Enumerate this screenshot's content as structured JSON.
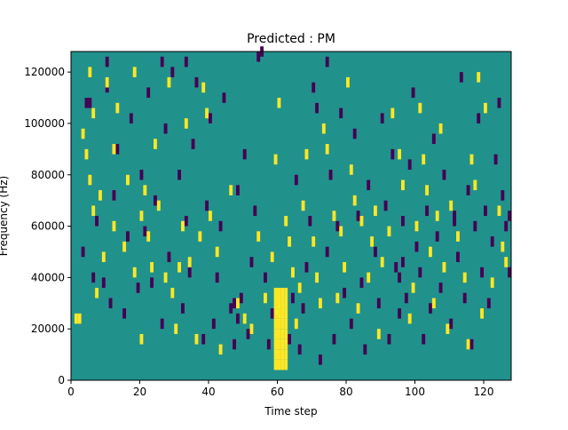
{
  "chart_data": {
    "type": "heatmap",
    "title": "Predicted : PM",
    "xlabel": "Time step",
    "ylabel": "Frequency (Hz)",
    "xlim": [
      0,
      128
    ],
    "ylim": [
      0,
      128000
    ],
    "x_ticks": [
      0,
      20,
      40,
      60,
      80,
      100,
      120
    ],
    "x_tick_labels": [
      "0",
      "20",
      "40",
      "60",
      "80",
      "100",
      "120"
    ],
    "y_ticks": [
      0,
      20000,
      40000,
      60000,
      80000,
      100000,
      120000
    ],
    "y_tick_labels": [
      "0",
      "20000",
      "40000",
      "60000",
      "80000",
      "100000",
      "120000"
    ],
    "grid": false,
    "colormap": "viridis",
    "background_value": 0,
    "colors": {
      "low": "#440154",
      "mid": "#21918c",
      "high": "#fde725"
    },
    "cell_height_hz": 4000,
    "bright_band": {
      "x_from": 59,
      "x_to": 62,
      "y_from": 4000,
      "y_to": 32000,
      "value": 1
    },
    "high_cells": [
      [
        1,
        22000
      ],
      [
        2,
        22000
      ],
      [
        3,
        94000
      ],
      [
        4,
        86000
      ],
      [
        5,
        76000
      ],
      [
        6,
        102000
      ],
      [
        5,
        118000
      ],
      [
        6,
        64000
      ],
      [
        7,
        32000
      ],
      [
        8,
        70000
      ],
      [
        9,
        46000
      ],
      [
        10,
        114000
      ],
      [
        12,
        58000
      ],
      [
        12,
        88000
      ],
      [
        13,
        104000
      ],
      [
        15,
        50000
      ],
      [
        16,
        76000
      ],
      [
        18,
        40000
      ],
      [
        18,
        118000
      ],
      [
        20,
        14000
      ],
      [
        20,
        62000
      ],
      [
        21,
        72000
      ],
      [
        22,
        54000
      ],
      [
        23,
        42000
      ],
      [
        24,
        90000
      ],
      [
        25,
        66000
      ],
      [
        27,
        38000
      ],
      [
        28,
        114000
      ],
      [
        29,
        32000
      ],
      [
        30,
        18000
      ],
      [
        31,
        42000
      ],
      [
        32,
        58000
      ],
      [
        33,
        98000
      ],
      [
        34,
        44000
      ],
      [
        36,
        14000
      ],
      [
        37,
        54000
      ],
      [
        38,
        112000
      ],
      [
        39,
        102000
      ],
      [
        40,
        62000
      ],
      [
        42,
        48000
      ],
      [
        43,
        10000
      ],
      [
        46,
        72000
      ],
      [
        48,
        28000
      ],
      [
        50,
        22000
      ],
      [
        52,
        18000
      ],
      [
        54,
        54000
      ],
      [
        56,
        30000
      ],
      [
        58,
        46000
      ],
      [
        59,
        84000
      ],
      [
        60,
        106000
      ],
      [
        61,
        24000
      ],
      [
        62,
        60000
      ],
      [
        63,
        52000
      ],
      [
        64,
        40000
      ],
      [
        65,
        20000
      ],
      [
        66,
        34000
      ],
      [
        67,
        66000
      ],
      [
        68,
        86000
      ],
      [
        70,
        52000
      ],
      [
        71,
        38000
      ],
      [
        72,
        28000
      ],
      [
        73,
        96000
      ],
      [
        74,
        88000
      ],
      [
        76,
        62000
      ],
      [
        77,
        30000
      ],
      [
        78,
        56000
      ],
      [
        79,
        42000
      ],
      [
        80,
        114000
      ],
      [
        81,
        80000
      ],
      [
        82,
        68000
      ],
      [
        83,
        26000
      ],
      [
        84,
        60000
      ],
      [
        86,
        38000
      ],
      [
        87,
        52000
      ],
      [
        88,
        64000
      ],
      [
        89,
        16000
      ],
      [
        90,
        44000
      ],
      [
        92,
        56000
      ],
      [
        93,
        102000
      ],
      [
        95,
        86000
      ],
      [
        96,
        74000
      ],
      [
        98,
        22000
      ],
      [
        99,
        34000
      ],
      [
        100,
        58000
      ],
      [
        101,
        104000
      ],
      [
        102,
        84000
      ],
      [
        103,
        72000
      ],
      [
        104,
        48000
      ],
      [
        105,
        28000
      ],
      [
        106,
        62000
      ],
      [
        107,
        96000
      ],
      [
        108,
        42000
      ],
      [
        109,
        18000
      ],
      [
        110,
        66000
      ],
      [
        112,
        54000
      ],
      [
        114,
        38000
      ],
      [
        115,
        12000
      ],
      [
        116,
        84000
      ],
      [
        117,
        74000
      ],
      [
        118,
        116000
      ],
      [
        119,
        24000
      ],
      [
        120,
        104000
      ],
      [
        122,
        36000
      ],
      [
        124,
        64000
      ],
      [
        125,
        50000
      ],
      [
        126,
        44000
      ]
    ],
    "low_cells": [
      [
        3,
        48000
      ],
      [
        4,
        106000
      ],
      [
        5,
        106000
      ],
      [
        6,
        38000
      ],
      [
        7,
        60000
      ],
      [
        9,
        36000
      ],
      [
        10,
        112000
      ],
      [
        11,
        28000
      ],
      [
        12,
        70000
      ],
      [
        13,
        88000
      ],
      [
        15,
        24000
      ],
      [
        16,
        54000
      ],
      [
        17,
        100000
      ],
      [
        19,
        34000
      ],
      [
        20,
        78000
      ],
      [
        21,
        56000
      ],
      [
        22,
        110000
      ],
      [
        23,
        36000
      ],
      [
        24,
        68000
      ],
      [
        26,
        20000
      ],
      [
        27,
        96000
      ],
      [
        28,
        46000
      ],
      [
        29,
        118000
      ],
      [
        31,
        78000
      ],
      [
        32,
        26000
      ],
      [
        33,
        60000
      ],
      [
        34,
        40000
      ],
      [
        35,
        90000
      ],
      [
        36,
        114000
      ],
      [
        38,
        14000
      ],
      [
        39,
        66000
      ],
      [
        40,
        100000
      ],
      [
        41,
        20000
      ],
      [
        42,
        38000
      ],
      [
        43,
        58000
      ],
      [
        44,
        108000
      ],
      [
        46,
        26000
      ],
      [
        47,
        12000
      ],
      [
        48,
        72000
      ],
      [
        49,
        30000
      ],
      [
        50,
        86000
      ],
      [
        51,
        16000
      ],
      [
        52,
        44000
      ],
      [
        53,
        64000
      ],
      [
        54,
        124000
      ],
      [
        56,
        38000
      ],
      [
        57,
        12000
      ],
      [
        58,
        24000
      ],
      [
        63,
        14000
      ],
      [
        64,
        30000
      ],
      [
        65,
        76000
      ],
      [
        66,
        10000
      ],
      [
        67,
        26000
      ],
      [
        68,
        42000
      ],
      [
        69,
        60000
      ],
      [
        70,
        112000
      ],
      [
        71,
        104000
      ],
      [
        72,
        6000
      ],
      [
        74,
        48000
      ],
      [
        75,
        78000
      ],
      [
        76,
        14000
      ],
      [
        77,
        58000
      ],
      [
        78,
        102000
      ],
      [
        79,
        32000
      ],
      [
        81,
        20000
      ],
      [
        82,
        94000
      ],
      [
        83,
        62000
      ],
      [
        84,
        36000
      ],
      [
        85,
        10000
      ],
      [
        86,
        74000
      ],
      [
        88,
        48000
      ],
      [
        89,
        28000
      ],
      [
        90,
        100000
      ],
      [
        91,
        66000
      ],
      [
        92,
        14000
      ],
      [
        93,
        86000
      ],
      [
        94,
        42000
      ],
      [
        95,
        24000
      ],
      [
        96,
        60000
      ],
      [
        97,
        30000
      ],
      [
        98,
        82000
      ],
      [
        99,
        110000
      ],
      [
        100,
        50000
      ],
      [
        101,
        40000
      ],
      [
        102,
        14000
      ],
      [
        103,
        64000
      ],
      [
        104,
        26000
      ],
      [
        105,
        92000
      ],
      [
        106,
        54000
      ],
      [
        107,
        34000
      ],
      [
        108,
        78000
      ],
      [
        110,
        20000
      ],
      [
        111,
        60000
      ],
      [
        112,
        46000
      ],
      [
        113,
        116000
      ],
      [
        114,
        30000
      ],
      [
        115,
        72000
      ],
      [
        116,
        12000
      ],
      [
        117,
        58000
      ],
      [
        118,
        100000
      ],
      [
        119,
        40000
      ],
      [
        120,
        64000
      ],
      [
        121,
        28000
      ],
      [
        122,
        52000
      ],
      [
        123,
        84000
      ],
      [
        124,
        106000
      ],
      [
        125,
        70000
      ],
      [
        126,
        58000
      ],
      [
        127,
        40000
      ],
      [
        10,
        122000
      ],
      [
        55,
        126000
      ],
      [
        74,
        122000
      ],
      [
        33,
        122000
      ],
      [
        26,
        122000
      ],
      [
        111,
        62000
      ],
      [
        127,
        62000
      ],
      [
        47,
        28000
      ],
      [
        48,
        22000
      ],
      [
        95,
        38000
      ],
      [
        96,
        44000
      ]
    ]
  }
}
